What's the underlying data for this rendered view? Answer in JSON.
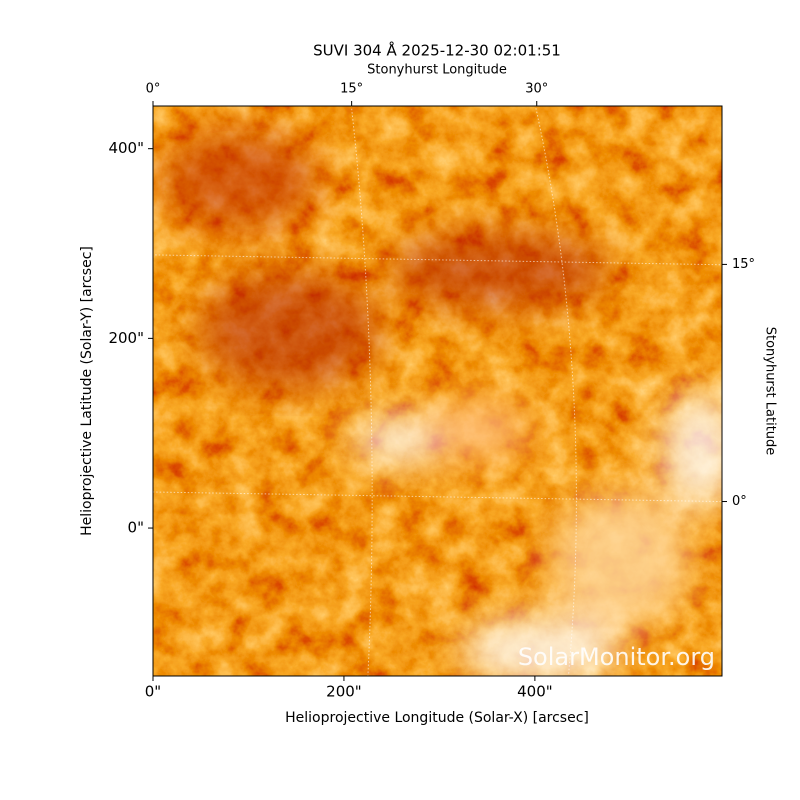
{
  "chart_data": {
    "type": "image",
    "title": "SUVI 304 Å 2025-12-30 02:01:51",
    "xlabel": "Helioprojective Longitude (Solar-X) [arcsec]",
    "ylabel": "Helioprojective Latitude (Solar-Y) [arcsec]",
    "x2label": "Stonyhurst Longitude",
    "y2label": "Stonyhurst Latitude",
    "xlim": [
      0,
      596
    ],
    "ylim": [
      -156,
      445
    ],
    "xticks": [
      {
        "value": 0,
        "label": "0\""
      },
      {
        "value": 200,
        "label": "200\""
      },
      {
        "value": 400,
        "label": "400\""
      }
    ],
    "yticks": [
      {
        "value": 0,
        "label": "0\""
      },
      {
        "value": 200,
        "label": "200\""
      },
      {
        "value": 400,
        "label": "400\""
      }
    ],
    "x2ticks": [
      {
        "value": 0,
        "label": "0°"
      },
      {
        "value": 15,
        "label": "15°"
      },
      {
        "value": 30,
        "label": "30°"
      }
    ],
    "y2ticks": [
      {
        "value": 0,
        "label": "0°"
      },
      {
        "value": 15,
        "label": "15°"
      }
    ],
    "watermark": "SolarMonitor.org"
  }
}
